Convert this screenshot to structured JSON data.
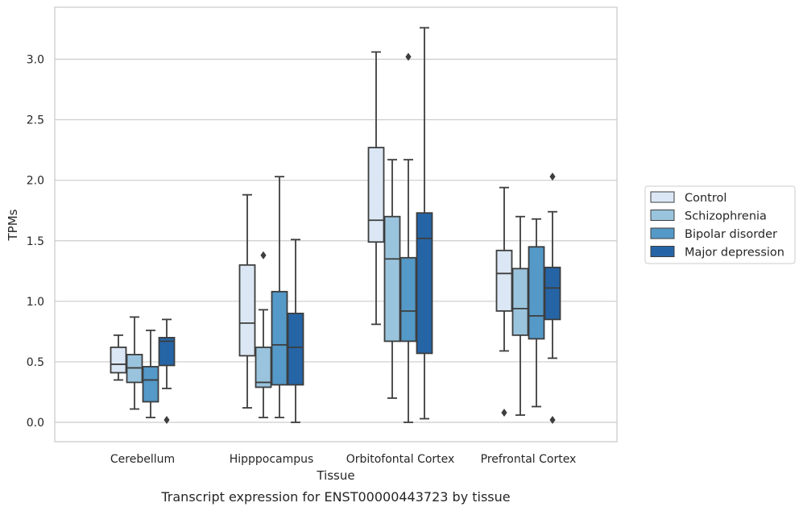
{
  "chart_data": {
    "type": "boxplot",
    "xlabel": "Tissue",
    "ylabel": "TPMs",
    "caption": "Transcript expression for ENST00000443723 by tissue",
    "ylim": [
      -0.16,
      3.43
    ],
    "yticks": [
      "0.0",
      "0.5",
      "1.0",
      "1.5",
      "2.0",
      "2.5",
      "3.0"
    ],
    "ytick_values": [
      0.0,
      0.5,
      1.0,
      1.5,
      2.0,
      2.5,
      3.0
    ],
    "grid": "horizontal",
    "legend_position": "right",
    "categories": [
      "Cerebellum",
      "Hipppocampus",
      "Orbitofontal Cortex",
      "Prefrontal Cortex"
    ],
    "series": [
      {
        "name": "Control",
        "color": "#dbe7f4",
        "boxes": [
          {
            "whislo": 0.35,
            "q1": 0.41,
            "med": 0.48,
            "q3": 0.62,
            "whishi": 0.72,
            "fliers": []
          },
          {
            "whislo": 0.12,
            "q1": 0.55,
            "med": 0.82,
            "q3": 1.3,
            "whishi": 1.88,
            "fliers": []
          },
          {
            "whislo": 0.81,
            "q1": 1.49,
            "med": 1.67,
            "q3": 2.27,
            "whishi": 3.06,
            "fliers": []
          },
          {
            "whislo": 0.59,
            "q1": 0.92,
            "med": 1.23,
            "q3": 1.42,
            "whishi": 1.94,
            "fliers": [
              0.08
            ]
          }
        ]
      },
      {
        "name": "Schizophrenia",
        "color": "#9ac4dd",
        "boxes": [
          {
            "whislo": 0.11,
            "q1": 0.33,
            "med": 0.45,
            "q3": 0.56,
            "whishi": 0.87,
            "fliers": []
          },
          {
            "whislo": 0.04,
            "q1": 0.29,
            "med": 0.33,
            "q3": 0.62,
            "whishi": 0.93,
            "fliers": [
              1.38
            ]
          },
          {
            "whislo": 0.2,
            "q1": 0.67,
            "med": 1.35,
            "q3": 1.7,
            "whishi": 2.17,
            "fliers": []
          },
          {
            "whislo": 0.06,
            "q1": 0.72,
            "med": 0.94,
            "q3": 1.27,
            "whishi": 1.7,
            "fliers": []
          }
        ]
      },
      {
        "name": "Bipolar disorder",
        "color": "#5499c7",
        "boxes": [
          {
            "whislo": 0.04,
            "q1": 0.17,
            "med": 0.35,
            "q3": 0.46,
            "whishi": 0.76,
            "fliers": []
          },
          {
            "whislo": 0.04,
            "q1": 0.31,
            "med": 0.64,
            "q3": 1.08,
            "whishi": 2.03,
            "fliers": []
          },
          {
            "whislo": 0.0,
            "q1": 0.67,
            "med": 0.92,
            "q3": 1.36,
            "whishi": 2.17,
            "fliers": [
              3.02
            ]
          },
          {
            "whislo": 0.13,
            "q1": 0.69,
            "med": 0.88,
            "q3": 1.45,
            "whishi": 1.68,
            "fliers": []
          }
        ]
      },
      {
        "name": "Major depression",
        "color": "#2565a6",
        "boxes": [
          {
            "whislo": 0.28,
            "q1": 0.47,
            "med": 0.67,
            "q3": 0.7,
            "whishi": 0.85,
            "fliers": [
              0.02
            ]
          },
          {
            "whislo": 0.0,
            "q1": 0.31,
            "med": 0.62,
            "q3": 0.9,
            "whishi": 1.51,
            "fliers": []
          },
          {
            "whislo": 0.03,
            "q1": 0.57,
            "med": 1.52,
            "q3": 1.73,
            "whishi": 3.26,
            "fliers": []
          },
          {
            "whislo": 0.53,
            "q1": 0.85,
            "med": 1.11,
            "q3": 1.28,
            "whishi": 1.74,
            "fliers": [
              0.02,
              2.03
            ]
          }
        ]
      }
    ]
  }
}
